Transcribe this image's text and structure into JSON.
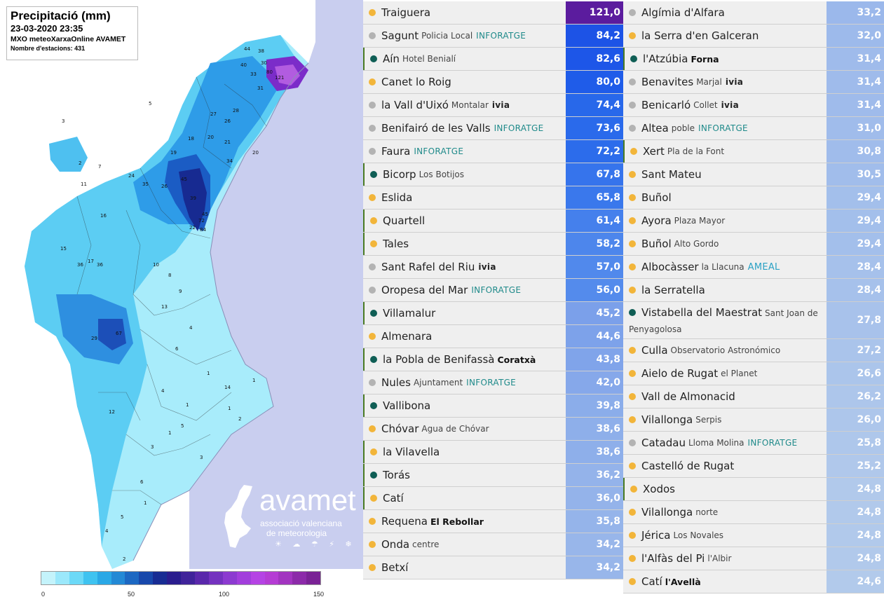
{
  "map": {
    "title": "Precipitació (mm)",
    "datetime": "23-03-2020 23:35",
    "source": "MXO meteoXarxaOnline AVAMET",
    "stations": "Nombre d'estacions: 431",
    "colors": {
      "sea": "#c9ceef",
      "land_outside": "#ffffff",
      "lowest": "#b6f0fb",
      "light": "#7fdcf7",
      "medium": "#34a6eb",
      "strong": "#1f5fc9",
      "dark": "#17268f",
      "purple": "#7b2cc9"
    },
    "labels": [
      "121",
      "80",
      "44",
      "38",
      "30",
      "40",
      "33",
      "31",
      "27",
      "28",
      "26",
      "20",
      "21",
      "34",
      "20",
      "18",
      "19",
      "26",
      "36",
      "35",
      "5",
      "3",
      "7",
      "11",
      "24",
      "29",
      "45",
      "39",
      "72",
      "84",
      "22",
      "45",
      "67",
      "16",
      "15",
      "36",
      "10",
      "8",
      "9",
      "17",
      "12",
      "13",
      "14",
      "4",
      "2",
      "6",
      "1",
      "4",
      "5",
      "3",
      "6",
      "5",
      "4",
      "3",
      "2",
      "1",
      "1",
      "2",
      "1",
      "1",
      "1"
    ]
  },
  "logo": {
    "name": "avamet",
    "line1": "associació valenciana",
    "line2": "de meteorologia",
    "icons": "☀ ☁ ☂ ⚡ ❄"
  },
  "colorbar": {
    "colors": [
      "#c4f3fb",
      "#9be8fb",
      "#6cd9f7",
      "#3fc3f0",
      "#2aa8e6",
      "#2389d5",
      "#1c68c2",
      "#1848ab",
      "#182c93",
      "#2a1d8e",
      "#40239a",
      "#5a28ab",
      "#7432bf",
      "#8c3ad0",
      "#a23edc",
      "#b543e4",
      "#b53cd4",
      "#a234c0",
      "#8c2aa9",
      "#7a2295"
    ],
    "ticks": [
      "0",
      "50",
      "100",
      "150"
    ]
  },
  "left_table": [
    {
      "dot": "o",
      "name": "Traiguera",
      "sub": "",
      "tag": "",
      "value": "121,0",
      "color": "#5b1c9e",
      "bar": false
    },
    {
      "dot": "g",
      "name": "Sagunt",
      "sub": "Policia Local",
      "tag": "INFORATGE",
      "value": "84,2",
      "color": "#1d53e6",
      "bar": false
    },
    {
      "dot": "t",
      "name": "Aín",
      "sub": "Hotel Benialí",
      "tag": "",
      "value": "82,6",
      "color": "#1d56e8",
      "bar": true
    },
    {
      "dot": "o",
      "name": "Canet lo Roig",
      "sub": "",
      "tag": "",
      "value": "80,0",
      "color": "#1f5ce9",
      "bar": false
    },
    {
      "dot": "g",
      "name": "la Vall d'Uixó",
      "sub": "Montalar",
      "tag": "ivia",
      "value": "74,4",
      "color": "#2868ea",
      "bar": false
    },
    {
      "dot": "g",
      "name": "Benifairó de les Valls",
      "sub": "",
      "tag": "INFORATGE",
      "value": "73,6",
      "color": "#2a6aeb",
      "bar": false
    },
    {
      "dot": "g",
      "name": "Faura",
      "sub": "",
      "tag": "INFORATGE",
      "value": "72,2",
      "color": "#2c6ceb",
      "bar": false
    },
    {
      "dot": "t",
      "name": "Bicorp",
      "sub": "Los Botijos",
      "tag": "",
      "value": "67,8",
      "color": "#3674ec",
      "bar": true
    },
    {
      "dot": "o",
      "name": "Eslida",
      "sub": "",
      "tag": "",
      "value": "65,8",
      "color": "#3a78ec",
      "bar": false
    },
    {
      "dot": "o",
      "name": "Quartell",
      "sub": "",
      "tag": "",
      "value": "61,4",
      "color": "#4580ec",
      "bar": true
    },
    {
      "dot": "o",
      "name": "Tales",
      "sub": "",
      "tag": "",
      "value": "58,2",
      "color": "#4d86ec",
      "bar": true
    },
    {
      "dot": "g",
      "name": "Sant Rafel del Riu",
      "sub": "",
      "tag": "ivia",
      "value": "57,0",
      "color": "#5189ec",
      "bar": false
    },
    {
      "dot": "g",
      "name": "Oropesa del Mar",
      "sub": "",
      "tag": "INFORATGE",
      "value": "56,0",
      "color": "#548bec",
      "bar": false
    },
    {
      "dot": "t",
      "name": "Villamalur",
      "sub": "",
      "tag": "",
      "value": "45,2",
      "color": "#7ba0ea",
      "bar": true
    },
    {
      "dot": "o",
      "name": "Almenara",
      "sub": "",
      "tag": "",
      "value": "44,6",
      "color": "#7da2ea",
      "bar": false
    },
    {
      "dot": "t",
      "name": "la Pobla de Benifassà",
      "sub": "Coratxà",
      "subBold": true,
      "tag": "",
      "value": "43,8",
      "color": "#80a4ea",
      "bar": true
    },
    {
      "dot": "g",
      "name": "Nules",
      "sub": "Ajuntament",
      "tag": "INFORATGE",
      "value": "42,0",
      "color": "#86a8ea",
      "bar": false
    },
    {
      "dot": "t",
      "name": "Vallibona",
      "sub": "",
      "tag": "",
      "value": "39,8",
      "color": "#8badea",
      "bar": true
    },
    {
      "dot": "o",
      "name": "Chóvar",
      "sub": "Agua de Chóvar",
      "tag": "",
      "value": "38,6",
      "color": "#8eafea",
      "bar": false
    },
    {
      "dot": "o",
      "name": "la Vilavella",
      "sub": "",
      "tag": "",
      "value": "38,6",
      "color": "#8eafea",
      "bar": true
    },
    {
      "dot": "t",
      "name": "Torás",
      "sub": "",
      "tag": "",
      "value": "36,2",
      "color": "#94b3ea",
      "bar": true
    },
    {
      "dot": "o",
      "name": "Catí",
      "sub": "",
      "tag": "",
      "value": "36,0",
      "color": "#94b3ea",
      "bar": true
    },
    {
      "dot": "o",
      "name": "Requena",
      "sub": "El Rebollar",
      "subBold": true,
      "tag": "",
      "value": "35,8",
      "color": "#95b4ea",
      "bar": false
    },
    {
      "dot": "o",
      "name": "Onda",
      "sub": "centre",
      "tag": "",
      "value": "34,2",
      "color": "#98b6ea",
      "bar": false
    },
    {
      "dot": "o",
      "name": "Betxí",
      "sub": "",
      "tag": "",
      "value": "34,2",
      "color": "#98b6ea",
      "bar": false
    }
  ],
  "right_table": [
    {
      "dot": "g",
      "name": "Algímia d'Alfara",
      "sub": "",
      "tag": "",
      "value": "33,2",
      "color": "#9bb8eb",
      "bar": false
    },
    {
      "dot": "o",
      "name": "la Serra d'en Galceran",
      "sub": "",
      "tag": "",
      "value": "32,0",
      "color": "#9dbaeb",
      "bar": false
    },
    {
      "dot": "t",
      "name": "l'Atzúbia",
      "sub": "Forna",
      "subBold": true,
      "tag": "",
      "value": "31,4",
      "color": "#9fbbeb",
      "bar": true
    },
    {
      "dot": "g",
      "name": "Benavites",
      "sub": "Marjal",
      "tag": "ivia",
      "value": "31,4",
      "color": "#9fbbeb",
      "bar": false
    },
    {
      "dot": "g",
      "name": "Benicarló",
      "sub": "Collet",
      "tag": "ivia",
      "value": "31,4",
      "color": "#9fbbeb",
      "bar": false
    },
    {
      "dot": "g",
      "name": "Altea",
      "sub": "poble",
      "tag": "INFORATGE",
      "value": "31,0",
      "color": "#a0bceb",
      "bar": false
    },
    {
      "dot": "o",
      "name": "Xert",
      "sub": "Pla de la Font",
      "tag": "",
      "value": "30,8",
      "color": "#a0bceb",
      "bar": true
    },
    {
      "dot": "o",
      "name": "Sant Mateu",
      "sub": "",
      "tag": "",
      "value": "30,5",
      "color": "#a1bdeb",
      "bar": false
    },
    {
      "dot": "o",
      "name": "Buñol",
      "sub": "",
      "tag": "",
      "value": "29,4",
      "color": "#a3bfeb",
      "bar": false
    },
    {
      "dot": "o",
      "name": "Ayora",
      "sub": "Plaza Mayor",
      "tag": "",
      "value": "29,4",
      "color": "#a3bfeb",
      "bar": false
    },
    {
      "dot": "o",
      "name": "Buñol",
      "sub": "Alto Gordo",
      "tag": "",
      "value": "29,4",
      "color": "#a3bfeb",
      "bar": false
    },
    {
      "dot": "o",
      "name": "Albocàsser",
      "sub": "la Llacuna",
      "tag": "AMEAL",
      "value": "28,4",
      "color": "#a6c1eb",
      "bar": false
    },
    {
      "dot": "o",
      "name": "la Serratella",
      "sub": "",
      "tag": "",
      "value": "28,4",
      "color": "#a6c1eb",
      "bar": false
    },
    {
      "dot": "t",
      "name": "Vistabella del Maestrat",
      "sub": "Sant Joan de Penyagolosa",
      "tag": "",
      "value": "27,8",
      "color": "#a8c2eb",
      "bar": false,
      "tall": true
    },
    {
      "dot": "o",
      "name": "Culla",
      "sub": "Observatorio Astronómico",
      "tag": "",
      "value": "27,2",
      "color": "#aac4eb",
      "bar": false
    },
    {
      "dot": "o",
      "name": "Aielo de Rugat",
      "sub": "el Planet",
      "tag": "",
      "value": "26,6",
      "color": "#abc5eb",
      "bar": false
    },
    {
      "dot": "o",
      "name": "Vall de Almonacid",
      "sub": "",
      "tag": "",
      "value": "26,2",
      "color": "#adc6eb",
      "bar": false
    },
    {
      "dot": "o",
      "name": "Vilallonga",
      "sub": "Serpis",
      "tag": "",
      "value": "26,0",
      "color": "#adc6eb",
      "bar": false
    },
    {
      "dot": "g",
      "name": "Catadau",
      "sub": "Lloma Molina",
      "tag": "INFORATGE",
      "value": "25,8",
      "color": "#aec7eb",
      "bar": false
    },
    {
      "dot": "o",
      "name": "Castelló de Rugat",
      "sub": "",
      "tag": "",
      "value": "25,2",
      "color": "#b0c8eb",
      "bar": false
    },
    {
      "dot": "o",
      "name": "Xodos",
      "sub": "",
      "tag": "",
      "value": "24,8",
      "color": "#b1c9eb",
      "bar": true
    },
    {
      "dot": "o",
      "name": "Vilallonga",
      "sub": "norte",
      "tag": "",
      "value": "24,8",
      "color": "#b1c9eb",
      "bar": false
    },
    {
      "dot": "o",
      "name": "Jérica",
      "sub": "Los Novales",
      "tag": "",
      "value": "24,8",
      "color": "#b1c9eb",
      "bar": false
    },
    {
      "dot": "o",
      "name": "l'Alfàs del Pi",
      "sub": "l'Albir",
      "tag": "",
      "value": "24,8",
      "color": "#b1c9eb",
      "bar": false
    },
    {
      "dot": "o",
      "name": "Catí",
      "sub": "l'Avellà",
      "subBold": true,
      "tag": "",
      "value": "24,6",
      "color": "#b2caeb",
      "bar": false
    }
  ]
}
